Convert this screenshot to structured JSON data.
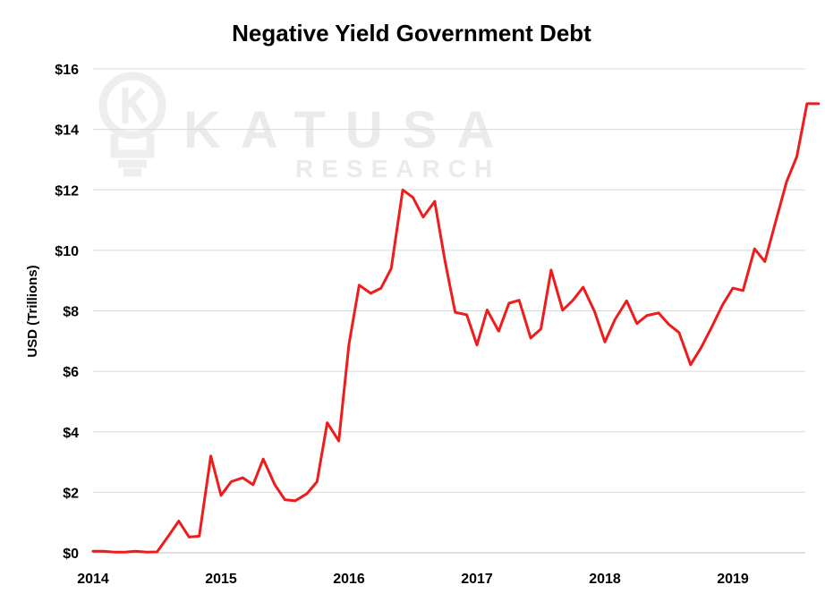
{
  "chart_data": {
    "type": "line",
    "title": "Negative Yield Government Debt",
    "ylabel": "USD (Trillions)",
    "xlabel": "",
    "x_tick_labels": [
      "2014",
      "2015",
      "2016",
      "2017",
      "2018",
      "2019"
    ],
    "y_tick_labels": [
      "$0",
      "$2",
      "$4",
      "$6",
      "$8",
      "$10",
      "$12",
      "$14",
      "$16"
    ],
    "y_ticks": [
      0,
      2,
      4,
      6,
      8,
      10,
      12,
      14,
      16
    ],
    "xlim": [
      2014.0,
      2019.67
    ],
    "ylim": [
      0,
      16
    ],
    "grid": "horizontal",
    "colors": {
      "line": "#ee1c1c",
      "grid": "#d9d9d9"
    },
    "watermark": {
      "brand": "KATUSA",
      "sub": "RESEARCH",
      "icon": "lightbulb-k-icon"
    },
    "series": [
      {
        "x": [
          2014.0,
          2014.08,
          2014.17,
          2014.25,
          2014.33,
          2014.42,
          2014.5,
          2014.58,
          2014.67,
          2014.75,
          2014.83,
          2014.92,
          2015.0,
          2015.08,
          2015.17,
          2015.25,
          2015.33,
          2015.42,
          2015.5,
          2015.58,
          2015.67,
          2015.75,
          2015.83,
          2015.92,
          2016.0,
          2016.08,
          2016.17,
          2016.25,
          2016.33,
          2016.42,
          2016.5,
          2016.58,
          2016.67,
          2016.75,
          2016.83,
          2016.92,
          2017.0,
          2017.08,
          2017.17,
          2017.25,
          2017.33,
          2017.42,
          2017.5,
          2017.58,
          2017.67,
          2017.75,
          2017.83,
          2017.92,
          2018.0,
          2018.08,
          2018.17,
          2018.25,
          2018.33,
          2018.42,
          2018.5,
          2018.58,
          2018.67,
          2018.75,
          2018.83,
          2018.92,
          2019.0,
          2019.08,
          2019.17,
          2019.25,
          2019.33,
          2019.42,
          2019.5,
          2019.58,
          2019.67
        ],
        "y": [
          0.05,
          0.05,
          0.02,
          0.02,
          0.05,
          0.02,
          0.03,
          0.5,
          1.05,
          0.52,
          0.55,
          3.2,
          1.9,
          2.35,
          2.48,
          2.25,
          3.1,
          2.25,
          1.75,
          1.72,
          1.95,
          2.35,
          4.3,
          3.7,
          6.9,
          8.85,
          8.58,
          8.75,
          9.4,
          12.0,
          11.75,
          11.1,
          11.62,
          9.65,
          7.95,
          7.87,
          6.87,
          8.03,
          7.33,
          8.25,
          8.35,
          7.1,
          7.4,
          9.35,
          8.02,
          8.35,
          8.78,
          7.97,
          6.97,
          7.72,
          8.33,
          7.58,
          7.85,
          7.93,
          7.55,
          7.28,
          6.22,
          6.77,
          7.42,
          8.2,
          8.75,
          8.67,
          10.05,
          9.63,
          10.88,
          12.27,
          13.1,
          14.85,
          14.85
        ]
      }
    ]
  }
}
